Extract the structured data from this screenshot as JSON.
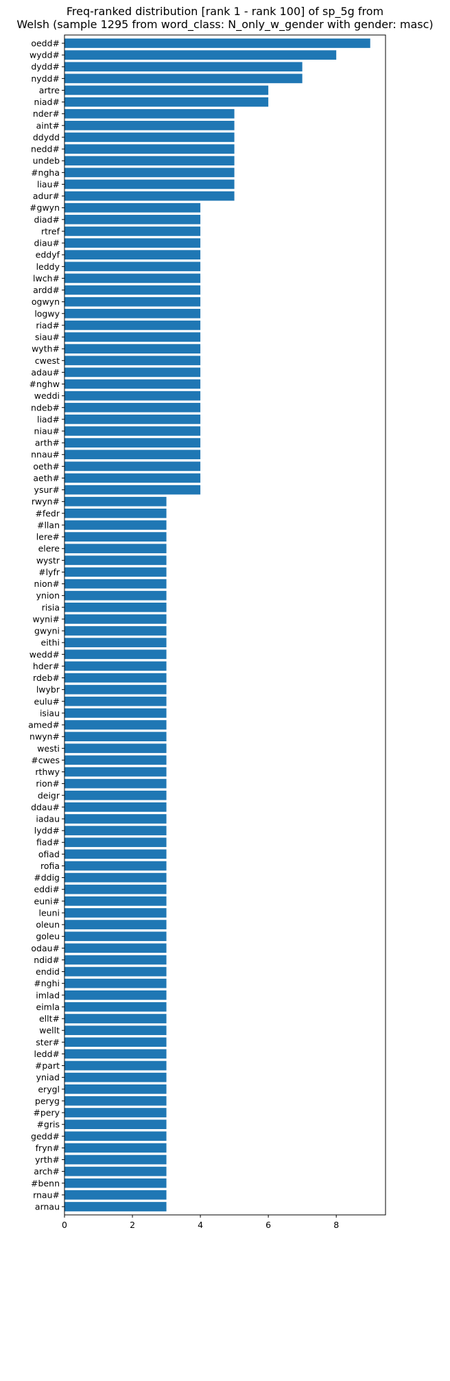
{
  "chart_data": {
    "type": "bar",
    "orientation": "horizontal",
    "title": "Freq-ranked distribution [rank 1 - rank 100] of sp_5g from\nWelsh (sample 1295 from word_class: N_only_w_gender with gender: masc)",
    "xlabel": "",
    "ylabel": "",
    "xlim": [
      0,
      9.45
    ],
    "xticks": [
      0,
      2,
      4,
      6,
      8
    ],
    "grid": false,
    "bar_color": "#1f77b4",
    "categories": [
      "oedd#",
      "wydd#",
      "dydd#",
      "nydd#",
      "artre",
      "niad#",
      "nder#",
      "aint#",
      "ddydd",
      "nedd#",
      "undeb",
      "#ngha",
      "liau#",
      "adur#",
      "#gwyn",
      "diad#",
      "rtref",
      "diau#",
      "eddyf",
      "leddy",
      "lwch#",
      "ardd#",
      "ogwyn",
      "logwy",
      "riad#",
      "siau#",
      "wyth#",
      "cwest",
      "adau#",
      "#nghw",
      "weddi",
      "ndeb#",
      "liad#",
      "niau#",
      "arth#",
      "nnau#",
      "oeth#",
      "aeth#",
      "ysur#",
      "rwyn#",
      "#fedr",
      "#llan",
      "lere#",
      "elere",
      "wystr",
      "#lyfr",
      "nion#",
      "ynion",
      "risia",
      "wyni#",
      "gwyni",
      "eithi",
      "wedd#",
      "hder#",
      "rdeb#",
      "lwybr",
      "eulu#",
      "isiau",
      "amed#",
      "nwyn#",
      "westi",
      "#cwes",
      "rthwy",
      "rion#",
      "deigr",
      "ddau#",
      "iadau",
      "lydd#",
      "fiad#",
      "ofiad",
      "rofia",
      "#ddig",
      "eddi#",
      "euni#",
      "leuni",
      "oleun",
      "goleu",
      "odau#",
      "ndid#",
      "endid",
      "#nghi",
      "imlad",
      "eimla",
      "ellt#",
      "wellt",
      "ster#",
      "ledd#",
      "#part",
      "yniad",
      "erygl",
      "peryg",
      "#pery",
      "#gris",
      "gedd#",
      "fryn#",
      "yrth#",
      "arch#",
      "#benn",
      "rnau#",
      "arnau"
    ],
    "values": [
      9,
      8,
      7,
      7,
      6,
      6,
      5,
      5,
      5,
      5,
      5,
      5,
      5,
      5,
      4,
      4,
      4,
      4,
      4,
      4,
      4,
      4,
      4,
      4,
      4,
      4,
      4,
      4,
      4,
      4,
      4,
      4,
      4,
      4,
      4,
      4,
      4,
      4,
      4,
      3,
      3,
      3,
      3,
      3,
      3,
      3,
      3,
      3,
      3,
      3,
      3,
      3,
      3,
      3,
      3,
      3,
      3,
      3,
      3,
      3,
      3,
      3,
      3,
      3,
      3,
      3,
      3,
      3,
      3,
      3,
      3,
      3,
      3,
      3,
      3,
      3,
      3,
      3,
      3,
      3,
      3,
      3,
      3,
      3,
      3,
      3,
      3,
      3,
      3,
      3,
      3,
      3,
      3,
      3,
      3,
      3,
      3,
      3,
      3,
      3
    ]
  }
}
